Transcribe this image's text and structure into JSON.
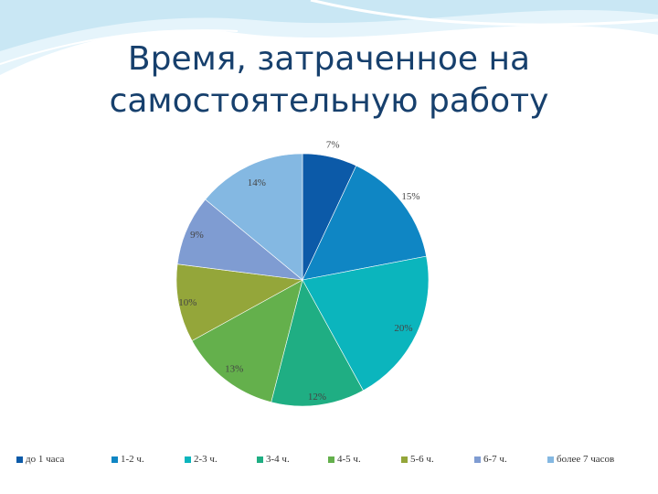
{
  "slide": {
    "title_line1": "Время, затраченное на",
    "title_line2": "самостоятельную работу"
  },
  "chart_data": {
    "type": "pie",
    "title": "Время, затраченное на самостоятельную работу",
    "legend_position": "bottom",
    "categories": [
      "до 1 часа",
      "1-2 ч.",
      "2-3 ч.",
      "3-4 ч.",
      "4-5 ч.",
      "5-6 ч.",
      "6-7 ч.",
      "более 7 часов"
    ],
    "values": [
      7,
      15,
      20,
      12,
      13,
      10,
      9,
      14
    ],
    "data_labels": [
      "7%",
      "15%",
      "20%",
      "12%",
      "13%",
      "10%",
      "9%",
      "14%"
    ],
    "colors": [
      "#0c5aa8",
      "#0f86c4",
      "#0bb5bd",
      "#1fae83",
      "#64b04c",
      "#94a63a",
      "#7f9cd2",
      "#84b8e2"
    ]
  },
  "theme": {
    "title_color": "#17406d",
    "decor_color": "#cfe9f6"
  }
}
